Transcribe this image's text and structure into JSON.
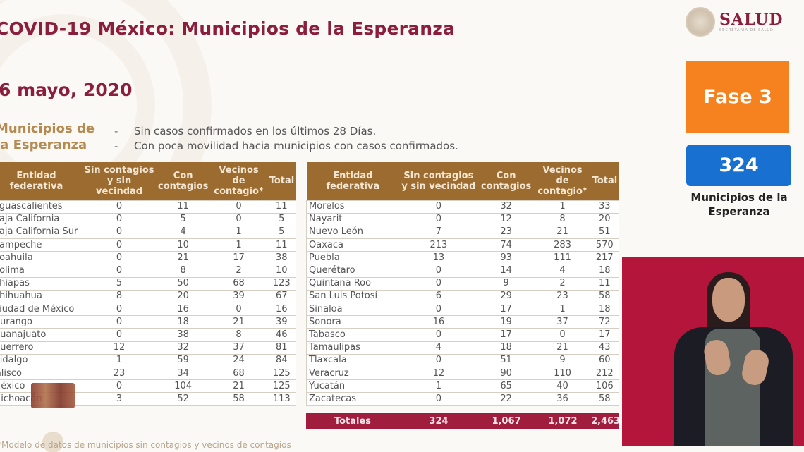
{
  "header": {
    "title": "COVID-19 México: Municipios de la Esperanza",
    "date": "6 mayo, 2020",
    "subtitle_line1": "Municipios de",
    "subtitle_line2": "la Esperanza",
    "criteria": [
      "Sin casos confirmados en los últimos 28 Días.",
      "Con poca movilidad hacia municipios con casos confirmados."
    ],
    "criteria_bullet": "-"
  },
  "logo": {
    "name": "SALUD",
    "sub": "Secretaría de Salud",
    "icon": "mexico-coat-of-arms-seal"
  },
  "side_panel": {
    "phase_label": "Fase 3",
    "phase_color": "#f5821f",
    "count_value": "324",
    "count_color": "#1870d0",
    "count_label_line1": "Municipios de la",
    "count_label_line2": "Esperanza"
  },
  "table": {
    "columns": [
      "Entidad federativa",
      "Sin contagios y sin vecindad",
      "Con contagios",
      "Vecinos de contagio*",
      "Total"
    ],
    "header_color": "#9c6b2f",
    "left_rows": [
      {
        "entidad": "Aguascalientes",
        "sin": "0",
        "con": "11",
        "vecinos": "0",
        "total": "11"
      },
      {
        "entidad": "Baja California",
        "sin": "0",
        "con": "5",
        "vecinos": "0",
        "total": "5"
      },
      {
        "entidad": "Baja California Sur",
        "sin": "0",
        "con": "4",
        "vecinos": "1",
        "total": "5"
      },
      {
        "entidad": "Campeche",
        "sin": "0",
        "con": "10",
        "vecinos": "1",
        "total": "11"
      },
      {
        "entidad": "Coahuila",
        "sin": "0",
        "con": "21",
        "vecinos": "17",
        "total": "38"
      },
      {
        "entidad": "Colima",
        "sin": "0",
        "con": "8",
        "vecinos": "2",
        "total": "10"
      },
      {
        "entidad": "Chiapas",
        "sin": "5",
        "con": "50",
        "vecinos": "68",
        "total": "123"
      },
      {
        "entidad": "Chihuahua",
        "sin": "8",
        "con": "20",
        "vecinos": "39",
        "total": "67"
      },
      {
        "entidad": "Ciudad de México",
        "sin": "0",
        "con": "16",
        "vecinos": "0",
        "total": "16"
      },
      {
        "entidad": "Durango",
        "sin": "0",
        "con": "18",
        "vecinos": "21",
        "total": "39"
      },
      {
        "entidad": "Guanajuato",
        "sin": "0",
        "con": "38",
        "vecinos": "8",
        "total": "46"
      },
      {
        "entidad": "Guerrero",
        "sin": "12",
        "con": "32",
        "vecinos": "37",
        "total": "81"
      },
      {
        "entidad": "Hidalgo",
        "sin": "1",
        "con": "59",
        "vecinos": "24",
        "total": "84"
      },
      {
        "entidad": "Jalisco",
        "sin": "23",
        "con": "34",
        "vecinos": "68",
        "total": "125"
      },
      {
        "entidad": "México",
        "sin": "0",
        "con": "104",
        "vecinos": "21",
        "total": "125"
      },
      {
        "entidad": "Michoacán",
        "sin": "3",
        "con": "52",
        "vecinos": "58",
        "total": "113"
      }
    ],
    "right_rows": [
      {
        "entidad": "Morelos",
        "sin": "0",
        "con": "32",
        "vecinos": "1",
        "total": "33"
      },
      {
        "entidad": "Nayarit",
        "sin": "0",
        "con": "12",
        "vecinos": "8",
        "total": "20"
      },
      {
        "entidad": "Nuevo León",
        "sin": "7",
        "con": "23",
        "vecinos": "21",
        "total": "51"
      },
      {
        "entidad": "Oaxaca",
        "sin": "213",
        "con": "74",
        "vecinos": "283",
        "total": "570"
      },
      {
        "entidad": "Puebla",
        "sin": "13",
        "con": "93",
        "vecinos": "111",
        "total": "217"
      },
      {
        "entidad": "Querétaro",
        "sin": "0",
        "con": "14",
        "vecinos": "4",
        "total": "18"
      },
      {
        "entidad": "Quintana Roo",
        "sin": "0",
        "con": "9",
        "vecinos": "2",
        "total": "11"
      },
      {
        "entidad": "San Luis Potosí",
        "sin": "6",
        "con": "29",
        "vecinos": "23",
        "total": "58"
      },
      {
        "entidad": "Sinaloa",
        "sin": "0",
        "con": "17",
        "vecinos": "1",
        "total": "18"
      },
      {
        "entidad": "Sonora",
        "sin": "16",
        "con": "19",
        "vecinos": "37",
        "total": "72"
      },
      {
        "entidad": "Tabasco",
        "sin": "0",
        "con": "17",
        "vecinos": "0",
        "total": "17"
      },
      {
        "entidad": "Tamaulipas",
        "sin": "4",
        "con": "18",
        "vecinos": "21",
        "total": "43"
      },
      {
        "entidad": "Tlaxcala",
        "sin": "0",
        "con": "51",
        "vecinos": "9",
        "total": "60"
      },
      {
        "entidad": "Veracruz",
        "sin": "12",
        "con": "90",
        "vecinos": "110",
        "total": "212"
      },
      {
        "entidad": "Yucatán",
        "sin": "1",
        "con": "65",
        "vecinos": "40",
        "total": "106"
      },
      {
        "entidad": "Zacatecas",
        "sin": "0",
        "con": "22",
        "vecinos": "36",
        "total": "58"
      }
    ],
    "totals": {
      "label": "Totales",
      "sin": "324",
      "con": "1,067",
      "vecinos": "1,072",
      "total": "2,463",
      "color": "#a11d3e"
    }
  },
  "footer": {
    "note": "*Modelo de datos de municipios sin contagios y vecinos de contagios"
  },
  "video_overlay": {
    "description": "Sign language interpreter",
    "background_color": "#b4163b"
  }
}
